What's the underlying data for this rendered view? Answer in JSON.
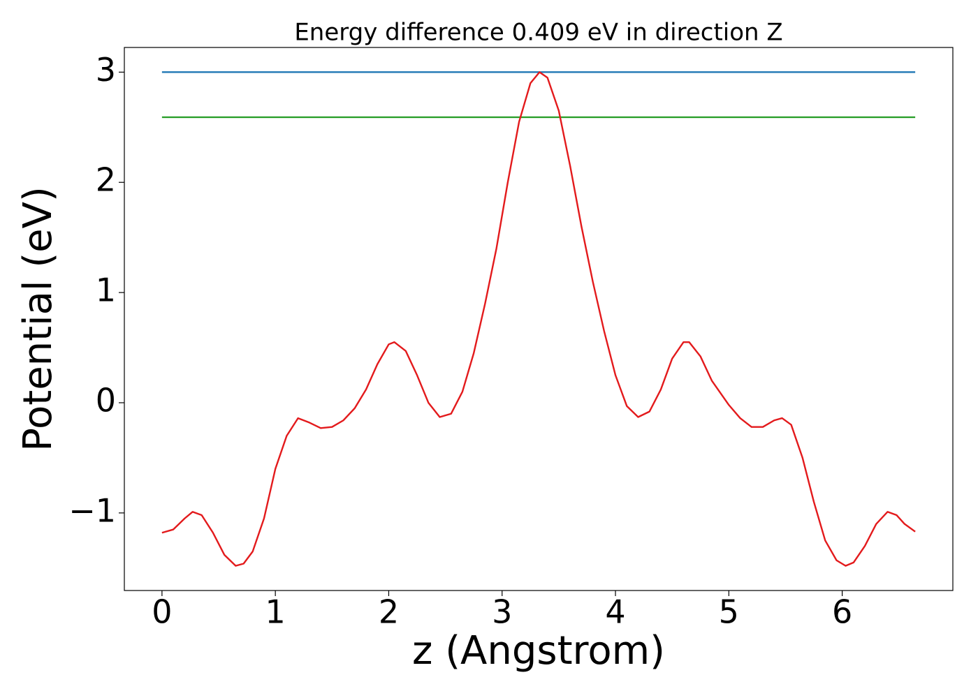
{
  "chart_data": {
    "type": "line",
    "title": "Energy difference 0.409 eV in direction Z",
    "xlabel": "z (Angstrom)",
    "ylabel": "Potential (eV)",
    "xlim": [
      -0.332,
      6.976
    ],
    "ylim": [
      -1.704,
      3.224
    ],
    "xticks": [
      0,
      1,
      2,
      3,
      4,
      5,
      6
    ],
    "yticks": [
      {
        "value": -1,
        "label": "−1"
      },
      0,
      1,
      2,
      3
    ],
    "grid": false,
    "series": [
      {
        "color": "#1f77b4",
        "x": [
          0,
          6.644
        ],
        "values": [
          3.0,
          3.0
        ]
      },
      {
        "color": "#2ca02c",
        "x": [
          0,
          6.644
        ],
        "values": [
          2.591,
          2.591
        ]
      },
      {
        "color": "#e31a1c",
        "x": [
          0,
          0.1,
          0.2,
          0.27,
          0.35,
          0.45,
          0.55,
          0.65,
          0.72,
          0.8,
          0.9,
          1.0,
          1.1,
          1.2,
          1.3,
          1.4,
          1.5,
          1.6,
          1.7,
          1.8,
          1.9,
          2.0,
          2.05,
          2.15,
          2.25,
          2.35,
          2.45,
          2.55,
          2.65,
          2.75,
          2.85,
          2.95,
          3.05,
          3.15,
          3.25,
          3.33,
          3.4,
          3.5,
          3.6,
          3.7,
          3.8,
          3.9,
          4.0,
          4.1,
          4.2,
          4.3,
          4.4,
          4.5,
          4.6,
          4.65,
          4.75,
          4.85,
          5.0,
          5.1,
          5.2,
          5.3,
          5.4,
          5.47,
          5.55,
          5.65,
          5.75,
          5.85,
          5.95,
          6.03,
          6.1,
          6.2,
          6.3,
          6.4,
          6.48,
          6.55,
          6.644
        ],
        "values": [
          -1.18,
          -1.15,
          -1.05,
          -0.99,
          -1.02,
          -1.18,
          -1.38,
          -1.48,
          -1.46,
          -1.35,
          -1.05,
          -0.6,
          -0.3,
          -0.14,
          -0.18,
          -0.23,
          -0.22,
          -0.16,
          -0.05,
          0.12,
          0.35,
          0.53,
          0.55,
          0.47,
          0.25,
          0.0,
          -0.13,
          -0.1,
          0.1,
          0.45,
          0.9,
          1.4,
          2.0,
          2.55,
          2.9,
          3.0,
          2.95,
          2.65,
          2.15,
          1.6,
          1.1,
          0.65,
          0.25,
          -0.03,
          -0.13,
          -0.08,
          0.12,
          0.4,
          0.55,
          0.55,
          0.42,
          0.2,
          -0.02,
          -0.14,
          -0.22,
          -0.22,
          -0.16,
          -0.14,
          -0.2,
          -0.5,
          -0.9,
          -1.25,
          -1.43,
          -1.48,
          -1.45,
          -1.3,
          -1.1,
          -0.99,
          -1.02,
          -1.1,
          -1.17
        ]
      }
    ]
  }
}
